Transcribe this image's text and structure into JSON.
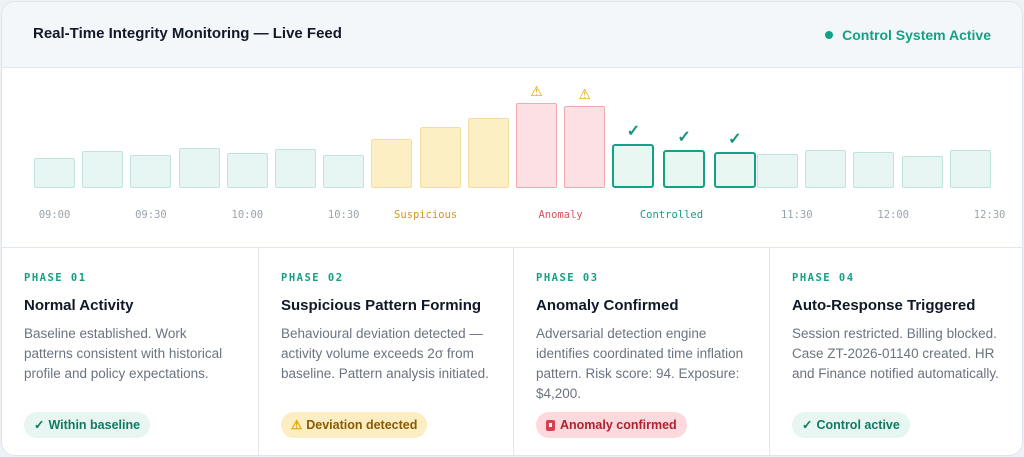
{
  "header": {
    "title": "Real-Time Integrity Monitoring — Live Feed",
    "status_label": "Control System Active",
    "status_color": "#14a085"
  },
  "timeline": {
    "bars": [
      {
        "state": "normal",
        "level": 0.3
      },
      {
        "state": "normal",
        "level": 0.37
      },
      {
        "state": "normal",
        "level": 0.33
      },
      {
        "state": "normal",
        "level": 0.4
      },
      {
        "state": "normal",
        "level": 0.35
      },
      {
        "state": "normal",
        "level": 0.39
      },
      {
        "state": "normal",
        "level": 0.33
      },
      {
        "state": "suspicious",
        "level": 0.49
      },
      {
        "state": "suspicious",
        "level": 0.61
      },
      {
        "state": "suspicious",
        "level": 0.7
      },
      {
        "state": "anomaly",
        "level": 0.85,
        "marker": "warning-icon"
      },
      {
        "state": "anomaly",
        "level": 0.82,
        "marker": "warning-icon"
      },
      {
        "state": "controlled",
        "level": 0.44,
        "marker": "check-icon"
      },
      {
        "state": "controlled",
        "level": 0.38,
        "marker": "check-icon"
      },
      {
        "state": "controlled",
        "level": 0.36,
        "marker": "check-icon"
      },
      {
        "state": "normal",
        "level": 0.34
      },
      {
        "state": "normal",
        "level": 0.38
      },
      {
        "state": "normal",
        "level": 0.36
      },
      {
        "state": "normal",
        "level": 0.32
      },
      {
        "state": "normal",
        "level": 0.38
      }
    ],
    "labels": [
      {
        "text": "09:00",
        "state": "normal",
        "at": 0
      },
      {
        "text": "09:30",
        "state": "normal",
        "at": 2
      },
      {
        "text": "10:00",
        "state": "normal",
        "at": 4
      },
      {
        "text": "10:30",
        "state": "normal",
        "at": 6
      },
      {
        "text": "Suspicious",
        "state": "suspicious",
        "at": 7.7
      },
      {
        "text": "Anomaly",
        "state": "anomaly",
        "at": 10.5
      },
      {
        "text": "Controlled",
        "state": "controlled",
        "at": 12.8
      },
      {
        "text": "11:30",
        "state": "normal",
        "at": 15.4
      },
      {
        "text": "12:00",
        "state": "normal",
        "at": 17.4
      },
      {
        "text": "12:30",
        "state": "normal",
        "at": 19.4
      }
    ],
    "colors": {
      "normal": "#bfe4db",
      "suspicious": "#f4dda0",
      "anomaly": "#f3a7ae",
      "controlled": "#15a087"
    }
  },
  "phases": [
    {
      "num": "PHASE 01",
      "title": "Normal Activity",
      "desc": "Baseline established. Work patterns consistent with historical profile and policy expectations.",
      "badge": "Within baseline",
      "badge_icon": "✓",
      "badge_style": "ok"
    },
    {
      "num": "PHASE 02",
      "title": "Suspicious Pattern Forming",
      "desc": "Behavioural deviation detected — activity volume exceeds 2σ from baseline. Pattern analysis initiated.",
      "badge": "Deviation detected",
      "badge_icon": "⚠",
      "badge_style": "warn"
    },
    {
      "num": "PHASE 03",
      "title": "Anomaly Confirmed",
      "desc": "Adversarial detection engine identifies coordinated time inflation pattern. Risk score: 94. Exposure: $4,200.",
      "badge": "Anomaly confirmed",
      "badge_icon": "alert-icon",
      "badge_style": "danger"
    },
    {
      "num": "PHASE 04",
      "title": "Auto-Response Triggered",
      "desc": "Session restricted. Billing blocked. Case ZT-2026-01140 created. HR and Finance notified automatically.",
      "badge": "Control active",
      "badge_icon": "✓",
      "badge_style": "ok"
    }
  ]
}
